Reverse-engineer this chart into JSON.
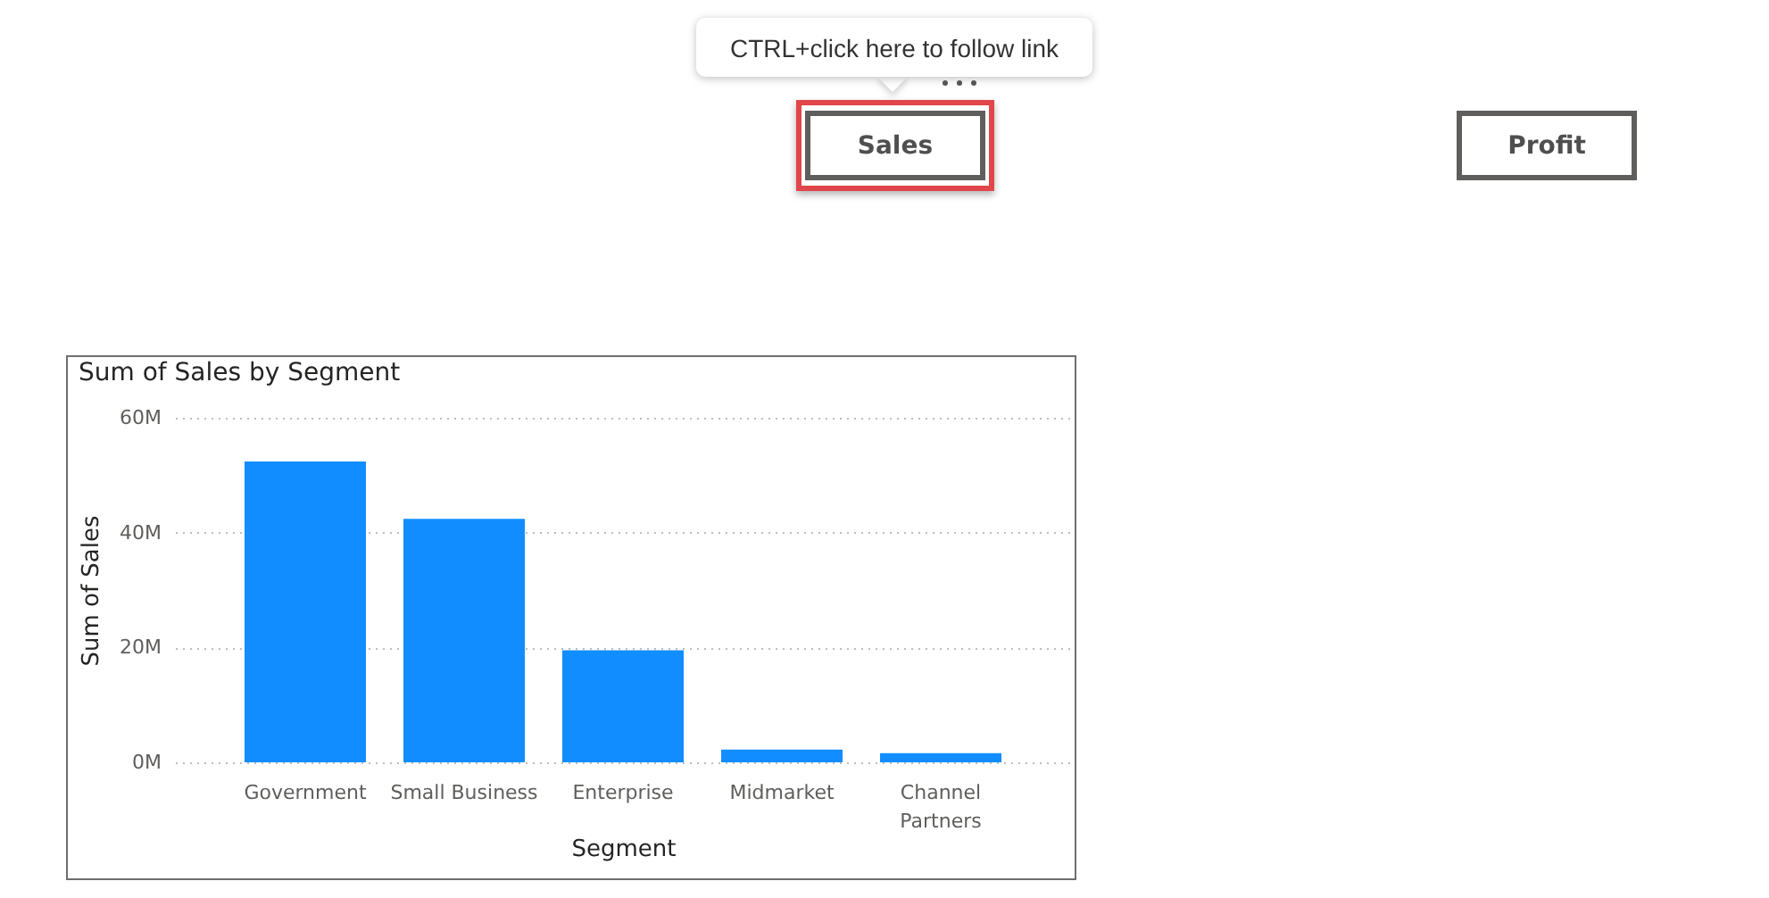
{
  "chart_data": {
    "type": "bar",
    "title": "Sum of Sales by Segment",
    "xlabel": "Segment",
    "ylabel": "Sum of Sales",
    "categories": [
      "Government",
      "Small Business",
      "Enterprise",
      "Midmarket",
      "Channel Partners"
    ],
    "values": [
      52.4,
      42.4,
      19.5,
      2.2,
      1.6
    ],
    "color": "#118dff",
    "ylim": [
      0,
      60
    ],
    "yticks": [
      {
        "value": 0,
        "label": "0M"
      },
      {
        "value": 20,
        "label": "20M"
      },
      {
        "value": 40,
        "label": "40M"
      },
      {
        "value": 60,
        "label": "60M"
      }
    ],
    "grid": "y",
    "annotations": [
      "CTRL+click here to follow link",
      "Sales",
      "Profit"
    ]
  }
}
